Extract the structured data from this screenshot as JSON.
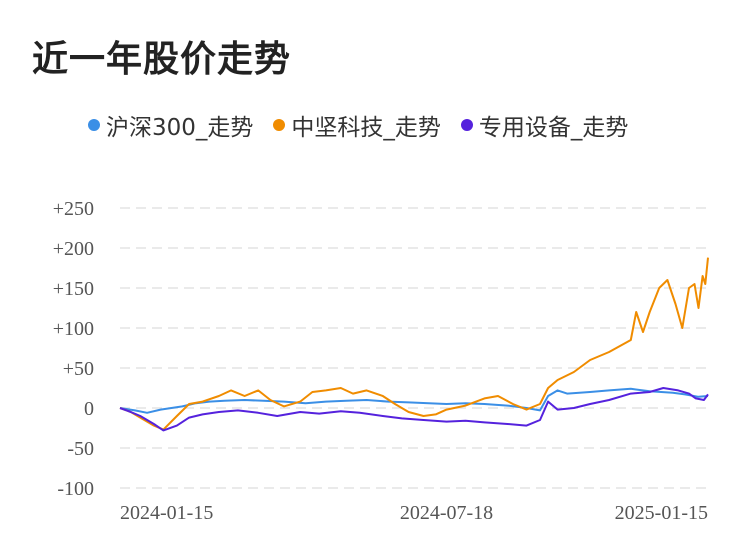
{
  "title": "近一年股价走势",
  "chart_data": {
    "type": "line",
    "ylim": [
      -100,
      250
    ],
    "yticks": [
      "+250",
      "+200",
      "+150",
      "+100",
      "+50",
      "0",
      "-50",
      "-100"
    ],
    "ytick_values": [
      250,
      200,
      150,
      100,
      50,
      0,
      -50,
      -100
    ],
    "x_tick_labels": [
      "2024-01-15",
      "2024-07-18",
      "2025-01-15"
    ],
    "x_range": [
      "2023-11-20",
      "2025-01-27"
    ],
    "grid": true,
    "legend_position": "top",
    "series": [
      {
        "name": "沪深300_走势",
        "color": "#3b8fe6",
        "points": [
          [
            "2023-11-20",
            0
          ],
          [
            "2023-12-01",
            -3
          ],
          [
            "2023-12-10",
            -6
          ],
          [
            "2023-12-20",
            -2
          ],
          [
            "2024-01-05",
            2
          ],
          [
            "2024-01-15",
            6
          ],
          [
            "2024-01-25",
            8
          ],
          [
            "2024-02-05",
            9
          ],
          [
            "2024-02-20",
            10
          ],
          [
            "2024-03-05",
            9
          ],
          [
            "2024-03-20",
            8
          ],
          [
            "2024-04-05",
            6
          ],
          [
            "2024-04-20",
            8
          ],
          [
            "2024-05-05",
            9
          ],
          [
            "2024-05-20",
            10
          ],
          [
            "2024-06-05",
            8
          ],
          [
            "2024-06-20",
            7
          ],
          [
            "2024-07-05",
            6
          ],
          [
            "2024-07-18",
            5
          ],
          [
            "2024-08-01",
            6
          ],
          [
            "2024-08-15",
            5
          ],
          [
            "2024-09-01",
            3
          ],
          [
            "2024-09-15",
            0
          ],
          [
            "2024-09-25",
            -3
          ],
          [
            "2024-10-01",
            15
          ],
          [
            "2024-10-08",
            22
          ],
          [
            "2024-10-15",
            18
          ],
          [
            "2024-11-01",
            20
          ],
          [
            "2024-11-15",
            22
          ],
          [
            "2024-12-01",
            24
          ],
          [
            "2024-12-15",
            21
          ],
          [
            "2025-01-01",
            19
          ],
          [
            "2025-01-10",
            17
          ],
          [
            "2025-01-20",
            14
          ],
          [
            "2025-01-27",
            15
          ]
        ]
      },
      {
        "name": "中坚科技_走势",
        "color": "#f08c00",
        "points": [
          [
            "2023-11-20",
            0
          ],
          [
            "2023-11-28",
            -5
          ],
          [
            "2023-12-05",
            -12
          ],
          [
            "2023-12-15",
            -22
          ],
          [
            "2023-12-22",
            -27
          ],
          [
            "2024-01-01",
            -10
          ],
          [
            "2024-01-10",
            5
          ],
          [
            "2024-01-20",
            8
          ],
          [
            "2024-02-01",
            15
          ],
          [
            "2024-02-10",
            22
          ],
          [
            "2024-02-20",
            15
          ],
          [
            "2024-03-01",
            22
          ],
          [
            "2024-03-10",
            10
          ],
          [
            "2024-03-20",
            2
          ],
          [
            "2024-04-01",
            8
          ],
          [
            "2024-04-10",
            20
          ],
          [
            "2024-04-20",
            22
          ],
          [
            "2024-05-01",
            25
          ],
          [
            "2024-05-10",
            18
          ],
          [
            "2024-05-20",
            22
          ],
          [
            "2024-06-01",
            15
          ],
          [
            "2024-06-10",
            5
          ],
          [
            "2024-06-20",
            -5
          ],
          [
            "2024-07-01",
            -10
          ],
          [
            "2024-07-10",
            -8
          ],
          [
            "2024-07-18",
            -2
          ],
          [
            "2024-08-01",
            3
          ],
          [
            "2024-08-15",
            12
          ],
          [
            "2024-08-25",
            15
          ],
          [
            "2024-09-05",
            5
          ],
          [
            "2024-09-15",
            -2
          ],
          [
            "2024-09-25",
            5
          ],
          [
            "2024-10-01",
            25
          ],
          [
            "2024-10-08",
            35
          ],
          [
            "2024-10-20",
            45
          ],
          [
            "2024-11-01",
            60
          ],
          [
            "2024-11-15",
            70
          ],
          [
            "2024-12-01",
            85
          ],
          [
            "2024-12-05",
            120
          ],
          [
            "2024-12-10",
            95
          ],
          [
            "2024-12-15",
            120
          ],
          [
            "2024-12-22",
            150
          ],
          [
            "2024-12-28",
            160
          ],
          [
            "2025-01-03",
            130
          ],
          [
            "2025-01-08",
            100
          ],
          [
            "2025-01-13",
            150
          ],
          [
            "2025-01-17",
            155
          ],
          [
            "2025-01-20",
            125
          ],
          [
            "2025-01-23",
            165
          ],
          [
            "2025-01-25",
            155
          ],
          [
            "2025-01-27",
            188
          ]
        ]
      },
      {
        "name": "专用设备_走势",
        "color": "#5522dd",
        "points": [
          [
            "2023-11-20",
            0
          ],
          [
            "2023-11-28",
            -5
          ],
          [
            "2023-12-05",
            -10
          ],
          [
            "2023-12-15",
            -20
          ],
          [
            "2023-12-22",
            -28
          ],
          [
            "2024-01-01",
            -22
          ],
          [
            "2024-01-10",
            -12
          ],
          [
            "2024-01-20",
            -8
          ],
          [
            "2024-02-01",
            -5
          ],
          [
            "2024-02-15",
            -3
          ],
          [
            "2024-03-01",
            -6
          ],
          [
            "2024-03-15",
            -10
          ],
          [
            "2024-04-01",
            -5
          ],
          [
            "2024-04-15",
            -7
          ],
          [
            "2024-05-01",
            -4
          ],
          [
            "2024-05-15",
            -6
          ],
          [
            "2024-06-01",
            -10
          ],
          [
            "2024-06-15",
            -13
          ],
          [
            "2024-07-01",
            -15
          ],
          [
            "2024-07-18",
            -17
          ],
          [
            "2024-08-01",
            -16
          ],
          [
            "2024-08-15",
            -18
          ],
          [
            "2024-09-01",
            -20
          ],
          [
            "2024-09-15",
            -22
          ],
          [
            "2024-09-25",
            -15
          ],
          [
            "2024-10-01",
            8
          ],
          [
            "2024-10-08",
            -2
          ],
          [
            "2024-10-20",
            0
          ],
          [
            "2024-11-01",
            5
          ],
          [
            "2024-11-15",
            10
          ],
          [
            "2024-12-01",
            18
          ],
          [
            "2024-12-15",
            20
          ],
          [
            "2024-12-25",
            25
          ],
          [
            "2025-01-05",
            22
          ],
          [
            "2025-01-13",
            18
          ],
          [
            "2025-01-18",
            12
          ],
          [
            "2025-01-24",
            10
          ],
          [
            "2025-01-27",
            17
          ]
        ]
      }
    ]
  }
}
